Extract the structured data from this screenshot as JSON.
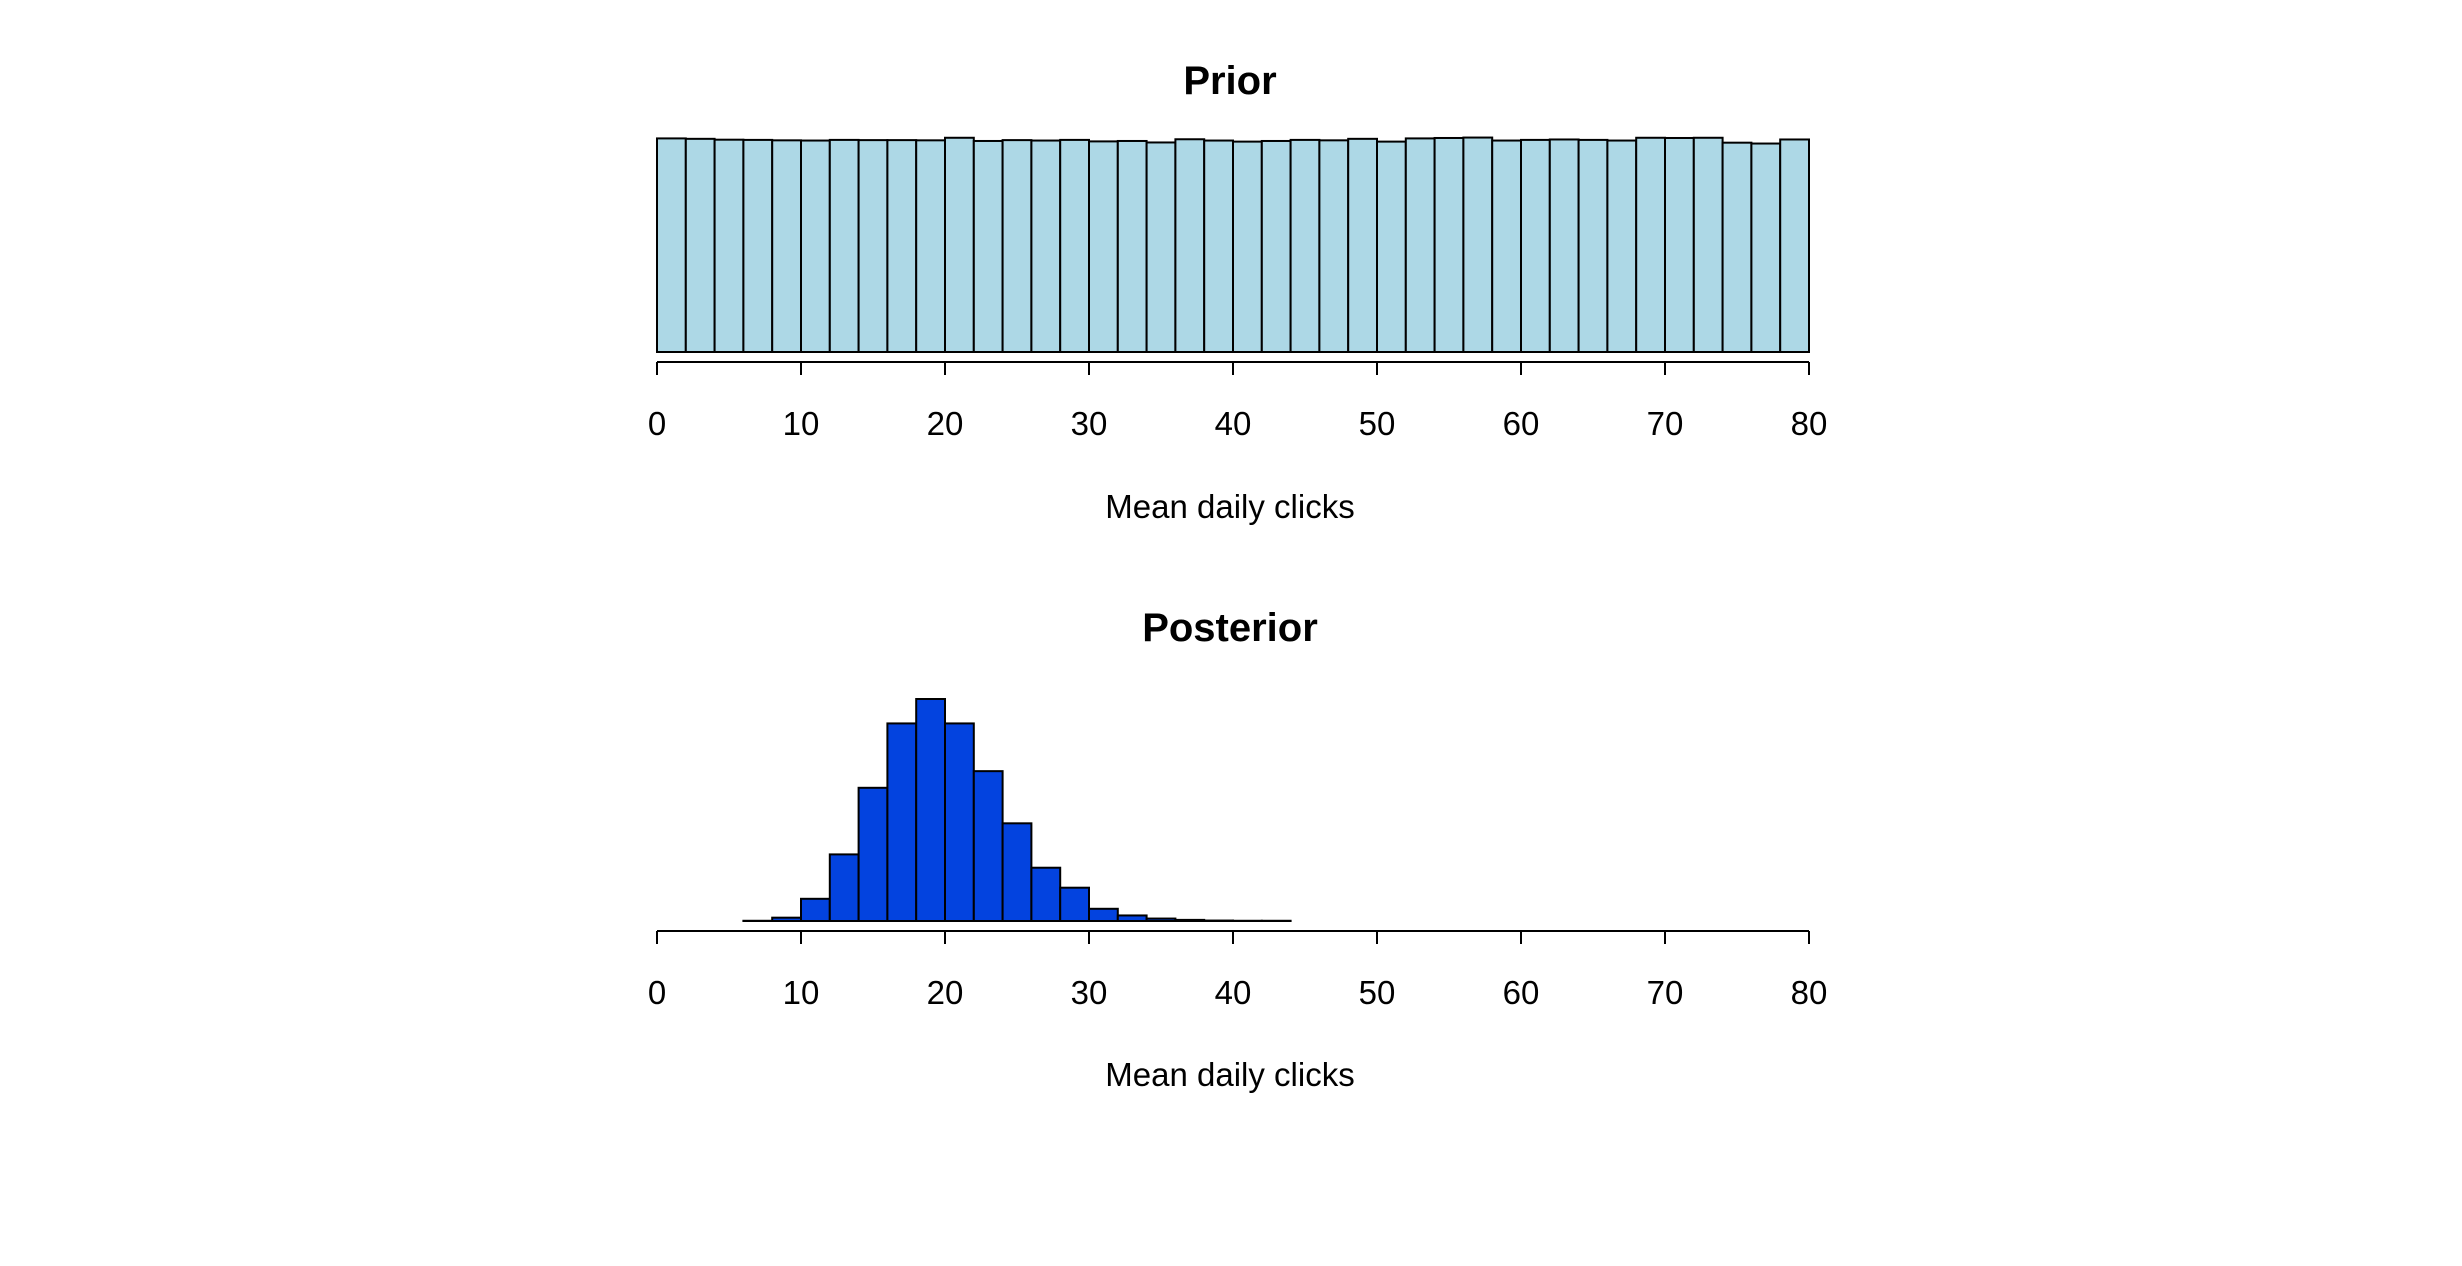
{
  "chart_data": [
    {
      "type": "bar",
      "title": "Prior",
      "xlabel": "Mean daily clicks",
      "ylabel": "",
      "x_bin_width": 2,
      "x_bin_start": 0,
      "xlim": [
        0,
        80
      ],
      "x_ticks": [
        0,
        10,
        20,
        30,
        40,
        50,
        60,
        70,
        80
      ],
      "ylim": [
        0,
        1.03
      ],
      "fill_color": "#add8e6",
      "stroke_color": "#000000",
      "values": [
        1.0,
        0.998,
        0.994,
        0.993,
        0.991,
        0.99,
        0.993,
        0.992,
        0.992,
        0.991,
        1.003,
        0.988,
        0.992,
        0.99,
        0.993,
        0.986,
        0.988,
        0.981,
        0.996,
        0.99,
        0.985,
        0.988,
        0.993,
        0.991,
        0.998,
        0.985,
        1.0,
        1.002,
        1.004,
        0.99,
        0.993,
        0.995,
        0.993,
        0.99,
        1.003,
        1.002,
        1.003,
        0.98,
        0.976,
        0.995,
        0.996
      ]
    },
    {
      "type": "bar",
      "title": "Posterior",
      "xlabel": "Mean daily clicks",
      "ylabel": "",
      "x_bin_width": 2,
      "x_bin_start": 0,
      "xlim": [
        0,
        80
      ],
      "x_ticks": [
        0,
        10,
        20,
        30,
        40,
        50,
        60,
        70,
        80
      ],
      "ylim": [
        0,
        1.0
      ],
      "fill_color": "#0343df",
      "stroke_color": "#000000",
      "values": [
        0.0,
        0.0,
        0.0,
        0.001,
        0.015,
        0.1,
        0.3,
        0.6,
        0.89,
        1.0,
        0.89,
        0.675,
        0.44,
        0.24,
        0.15,
        0.055,
        0.025,
        0.011,
        0.005,
        0.002,
        0.001,
        0.001,
        0.0,
        0.0,
        0.0,
        0.0,
        0.0,
        0.0,
        0.0,
        0.0,
        0.0,
        0.0,
        0.0,
        0.0,
        0.0,
        0.0,
        0.0,
        0.0,
        0.0,
        0.0
      ]
    }
  ]
}
